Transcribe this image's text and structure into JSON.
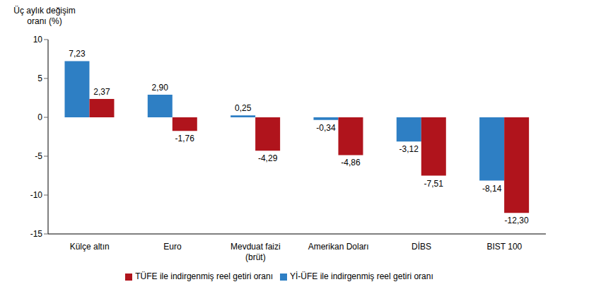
{
  "chart_data": {
    "type": "bar",
    "y_label": "Üç aylık değişim oranı (%)",
    "categories": [
      "Külçe altın",
      "Euro",
      "Mevduat faizi (brüt)",
      "Amerikan Doları",
      "DİBS",
      "BIST 100"
    ],
    "series": [
      {
        "name": "Yİ-ÜFE ile indirgenmiş reel getiri oranı",
        "color": "#2e7fc4",
        "values": [
          7.23,
          2.9,
          0.25,
          -0.34,
          -3.12,
          -8.14
        ],
        "value_labels": [
          "7,23",
          "2,90",
          "0,25",
          "-0,34",
          "-3,12",
          "-8,14"
        ]
      },
      {
        "name": "TÜFE ile indirgenmiş reel getiri oranı",
        "color": "#b0141c",
        "values": [
          2.37,
          -1.76,
          -4.29,
          -4.86,
          -7.51,
          -12.3
        ],
        "value_labels": [
          "2,37",
          "-1,76",
          "-4,29",
          "-4,86",
          "-7,51",
          "-12,30"
        ]
      }
    ],
    "ylim": [
      -15,
      10
    ],
    "yticks": [
      -15,
      -10,
      -5,
      0,
      5,
      10
    ],
    "grid": false,
    "legend": "bottom",
    "data_labels": true
  }
}
